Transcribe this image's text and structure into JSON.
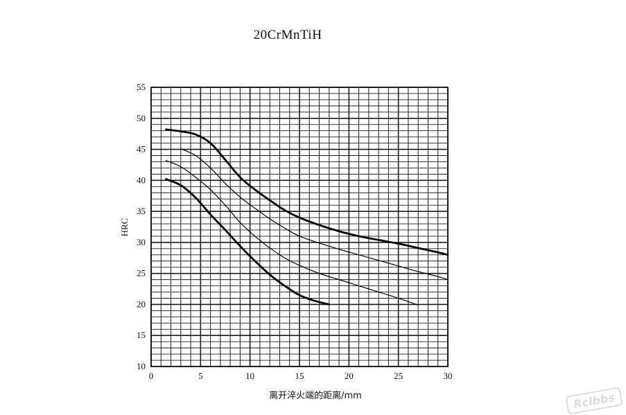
{
  "chart_data": {
    "type": "line",
    "title": "20CrMnTiH",
    "xlabel": "离开淬火端的距离/mm",
    "ylabel": "HRC",
    "xlim": [
      0,
      30
    ],
    "ylim": [
      10,
      55
    ],
    "x_ticks": [
      "0",
      "5",
      "10",
      "15",
      "20",
      "25",
      "30"
    ],
    "y_ticks": [
      "10",
      "15",
      "20",
      "25",
      "30",
      "35",
      "40",
      "45",
      "50",
      "55"
    ],
    "grid": true,
    "series": [
      {
        "style": "thick",
        "x": [
          1.5,
          3,
          4.5,
          6,
          7.5,
          9,
          10.5,
          12,
          13.5,
          15,
          17,
          19,
          21,
          23,
          25,
          27,
          29,
          30
        ],
        "y": [
          48.2,
          47.9,
          47.4,
          46,
          43.3,
          40.5,
          38.5,
          36.8,
          35.2,
          34,
          32.8,
          31.8,
          31,
          30.4,
          29.8,
          29.1,
          28.4,
          28
        ]
      },
      {
        "style": "thin",
        "x": [
          3,
          4.5,
          6,
          7.5,
          9,
          10.5,
          12,
          13.5,
          15,
          17,
          19,
          21,
          23,
          25,
          27,
          29,
          30
        ],
        "y": [
          45.1,
          44,
          42,
          39.5,
          37.3,
          35.5,
          33.8,
          32.3,
          31,
          29.9,
          28.9,
          28,
          27.1,
          26.2,
          25.3,
          24.5,
          24
        ]
      },
      {
        "style": "thin",
        "x": [
          1.5,
          3,
          4.5,
          6,
          7.5,
          9,
          10.5,
          12,
          13.5,
          15,
          17,
          19,
          21,
          23,
          25,
          27
        ],
        "y": [
          43.2,
          42.2,
          40.5,
          38.5,
          36,
          33.2,
          31,
          29.1,
          27.5,
          26.3,
          25,
          24,
          23,
          22,
          21,
          19.9
        ]
      },
      {
        "style": "thick",
        "x": [
          1.5,
          3,
          4.5,
          6,
          7.5,
          9,
          10.5,
          12,
          13.5,
          15,
          16.5,
          18
        ],
        "y": [
          40.2,
          39.2,
          37.2,
          34.5,
          32,
          29.4,
          27,
          24.8,
          23,
          21.5,
          20.6,
          20
        ]
      }
    ]
  },
  "watermark": "Rclbbs"
}
